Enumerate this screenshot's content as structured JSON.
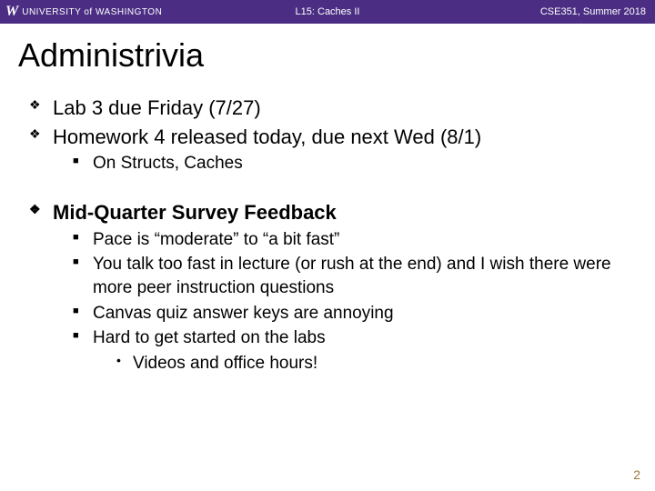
{
  "header": {
    "logo_w": "W",
    "university": "UNIVERSITY of WASHINGTON",
    "lecture": "L15: Caches II",
    "course": "CSE351, Summer 2018",
    "bg_color": "#4b2e83"
  },
  "title": "Administrivia",
  "items": [
    {
      "text": "Lab 3 due Friday (7/27)",
      "bold": false
    },
    {
      "text": "Homework 4 released today, due next Wed (8/1)",
      "bold": false,
      "sub": [
        {
          "text": "On Structs, Caches"
        }
      ]
    },
    {
      "text": "Mid-Quarter Survey Feedback",
      "bold": true,
      "gap_above": true,
      "sub": [
        {
          "text": "Pace is “moderate” to “a bit fast”"
        },
        {
          "text": "You talk too fast in lecture (or rush at the end) and I wish there were more peer instruction questions"
        },
        {
          "text": "Canvas quiz answer keys are annoying"
        },
        {
          "text": "Hard to get started on the labs",
          "sub": [
            {
              "text": "Videos and office hours!"
            }
          ]
        }
      ]
    }
  ],
  "page_number": "2"
}
